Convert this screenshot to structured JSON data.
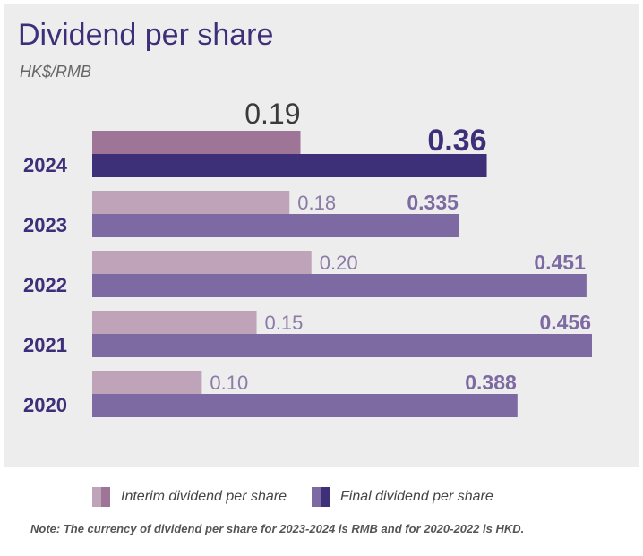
{
  "chart_data": {
    "type": "bar",
    "orientation": "horizontal",
    "title": "Dividend per share",
    "subtitle": "HK$/RMB",
    "categories": [
      "2024",
      "2023",
      "2022",
      "2021",
      "2020"
    ],
    "series": [
      {
        "name": "Interim dividend per share",
        "values": [
          0.19,
          0.18,
          0.2,
          0.15,
          0.1
        ],
        "labels": [
          "0.19",
          "0.18",
          "0.20",
          "0.15",
          "0.10"
        ]
      },
      {
        "name": "Final dividend per share",
        "values": [
          0.36,
          0.335,
          0.451,
          0.456,
          0.388
        ],
        "labels": [
          "0.36",
          "0.335",
          "0.451",
          "0.456",
          "0.388"
        ]
      }
    ],
    "xlim": [
      0,
      0.456
    ],
    "grid": false,
    "legend_position": "bottom",
    "colors": {
      "interim_highlight": "#9e7596",
      "final_highlight": "#3d2f78",
      "interim": "#bfa4b9",
      "final": "#7d6aa3",
      "title": "#3d2f78",
      "interim_label": "#8c7ba6",
      "final_label": "#7d6aa3",
      "year_label": "#3d2f78"
    }
  },
  "legend": {
    "interim_label": "Interim dividend per share",
    "final_label": "Final dividend per share"
  },
  "note": "Note: The currency of dividend per share for 2023-2024 is RMB and for 2020-2022 is HKD."
}
